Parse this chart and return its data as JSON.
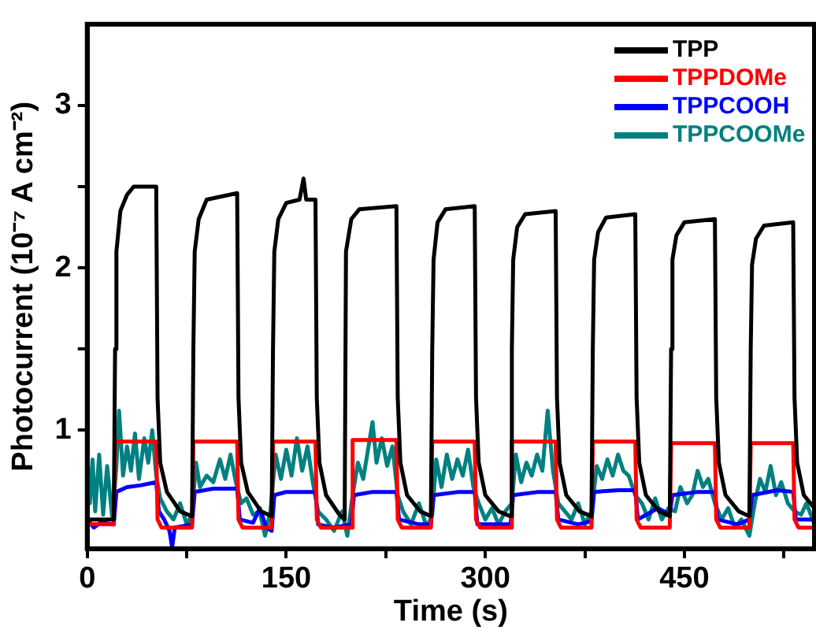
{
  "chart_data": {
    "type": "line",
    "xlabel": "Time (s)",
    "ylabel": "Photocurrent (10⁻⁷ A cm⁻²)",
    "xlim": [
      0,
      548
    ],
    "xticks": [
      0,
      {
        "value": 75,
        "label": null
      },
      150,
      {
        "value": 225,
        "label": null
      },
      300,
      {
        "value": 375,
        "label": null
      },
      450,
      {
        "value": 525,
        "label": null
      }
    ],
    "ylim": [
      0.27,
      3.5
    ],
    "yticks": [
      1,
      {
        "value": 1.5,
        "label": null
      },
      2,
      {
        "value": 2.5,
        "label": null
      },
      3
    ],
    "grid": false,
    "legend": "top right",
    "marker": "none",
    "line_style": "solid",
    "series": [
      {
        "name": "TPP",
        "color": "#000000",
        "x": [
          0,
          20,
          21,
          22,
          25,
          30,
          35,
          52,
          53,
          55,
          60,
          70,
          79,
          80,
          81,
          84,
          90,
          113,
          114,
          116,
          121,
          131,
          139,
          140,
          141,
          144,
          150,
          160,
          163,
          165,
          172,
          173,
          175,
          180,
          190,
          194,
          195,
          197,
          199,
          205,
          233,
          234,
          236,
          241,
          251,
          259,
          260,
          261,
          264,
          270,
          292,
          293,
          295,
          300,
          310,
          319,
          320,
          321,
          324,
          330,
          353,
          354,
          356,
          361,
          371,
          380,
          381,
          382,
          385,
          391,
          413,
          414,
          416,
          421,
          431,
          439,
          440,
          441,
          444,
          450,
          473,
          474,
          476,
          481,
          491,
          499,
          500,
          501,
          504,
          510,
          532,
          533,
          535,
          540,
          548
        ],
        "values": [
          0.45,
          0.45,
          1.5,
          2.1,
          2.35,
          2.45,
          2.5,
          2.5,
          1.2,
          0.8,
          0.62,
          0.5,
          0.47,
          1.5,
          2.1,
          2.3,
          2.42,
          2.46,
          1.2,
          0.8,
          0.62,
          0.5,
          0.47,
          1.5,
          2.1,
          2.3,
          2.4,
          2.42,
          2.55,
          2.42,
          2.42,
          1.2,
          0.8,
          0.6,
          0.48,
          0.45,
          2.1,
          2.2,
          2.3,
          2.36,
          2.38,
          1.2,
          0.8,
          0.6,
          0.5,
          0.47,
          1.5,
          2.05,
          2.28,
          2.36,
          2.38,
          1.2,
          0.8,
          0.6,
          0.5,
          0.47,
          1.5,
          2.05,
          2.25,
          2.33,
          2.35,
          1.2,
          0.8,
          0.6,
          0.5,
          0.47,
          1.5,
          2.05,
          2.22,
          2.31,
          2.33,
          1.2,
          0.8,
          0.6,
          0.5,
          0.47,
          1.5,
          2.05,
          2.2,
          2.28,
          2.3,
          1.2,
          0.8,
          0.6,
          0.5,
          0.47,
          1.5,
          2.02,
          2.18,
          2.26,
          2.28,
          1.2,
          0.8,
          0.6,
          0.52
        ]
      },
      {
        "name": "TPPDOMe",
        "color": "#ff0000",
        "x": [
          0,
          20,
          21,
          52,
          53,
          56,
          79,
          80,
          113,
          114,
          117,
          139,
          140,
          172,
          173,
          176,
          199,
          200,
          233,
          234,
          237,
          259,
          260,
          292,
          293,
          296,
          319,
          320,
          353,
          354,
          357,
          380,
          381,
          413,
          414,
          417,
          439,
          440,
          473,
          474,
          477,
          499,
          500,
          532,
          533,
          536,
          548
        ],
        "values": [
          0.42,
          0.42,
          0.93,
          0.93,
          0.45,
          0.4,
          0.4,
          0.93,
          0.93,
          0.45,
          0.4,
          0.4,
          0.93,
          0.93,
          0.45,
          0.4,
          0.4,
          0.94,
          0.94,
          0.45,
          0.4,
          0.4,
          0.93,
          0.93,
          0.45,
          0.4,
          0.4,
          0.93,
          0.93,
          0.45,
          0.4,
          0.4,
          0.93,
          0.93,
          0.45,
          0.4,
          0.4,
          0.92,
          0.92,
          0.45,
          0.4,
          0.4,
          0.92,
          0.92,
          0.45,
          0.4,
          0.4
        ]
      },
      {
        "name": "TPPCOOH",
        "color": "#0000ff",
        "x": [
          0,
          5,
          10,
          20,
          22,
          30,
          40,
          52,
          54,
          58,
          62,
          64,
          66,
          79,
          81,
          95,
          113,
          115,
          125,
          130,
          135,
          139,
          141,
          150,
          172,
          174,
          185,
          199,
          201,
          215,
          233,
          235,
          250,
          259,
          261,
          280,
          292,
          294,
          319,
          321,
          340,
          353,
          355,
          370,
          380,
          382,
          400,
          413,
          415,
          430,
          439,
          441,
          460,
          473,
          475,
          490,
          499,
          501,
          520,
          532,
          534,
          548
        ],
        "values": [
          0.45,
          0.4,
          0.43,
          0.42,
          0.62,
          0.65,
          0.66,
          0.68,
          0.5,
          0.45,
          0.38,
          0.28,
          0.4,
          0.42,
          0.62,
          0.64,
          0.64,
          0.45,
          0.43,
          0.52,
          0.4,
          0.38,
          0.6,
          0.62,
          0.62,
          0.42,
          0.4,
          0.42,
          0.6,
          0.62,
          0.62,
          0.45,
          0.42,
          0.42,
          0.6,
          0.62,
          0.62,
          0.42,
          0.42,
          0.6,
          0.62,
          0.62,
          0.45,
          0.42,
          0.44,
          0.62,
          0.63,
          0.63,
          0.45,
          0.52,
          0.48,
          0.6,
          0.62,
          0.62,
          0.45,
          0.42,
          0.45,
          0.6,
          0.63,
          0.62,
          0.45,
          0.45
        ]
      },
      {
        "name": "TPPCOOMe",
        "color": "#008080",
        "x": [
          0,
          2,
          4,
          6,
          9,
          12,
          15,
          19,
          22,
          24,
          27,
          30,
          33,
          36,
          39,
          43,
          46,
          49,
          52,
          55,
          60,
          65,
          70,
          75,
          79,
          82,
          85,
          90,
          95,
          100,
          104,
          108,
          112,
          116,
          120,
          125,
          130,
          134,
          138,
          142,
          146,
          150,
          154,
          158,
          162,
          166,
          170,
          174,
          180,
          186,
          192,
          196,
          200,
          204,
          208,
          212,
          215,
          218,
          222,
          226,
          230,
          234,
          238,
          244,
          250,
          256,
          260,
          263,
          267,
          271,
          275,
          279,
          283,
          287,
          291,
          295,
          300,
          305,
          310,
          315,
          320,
          323,
          327,
          331,
          335,
          339,
          343,
          347,
          351,
          355,
          360,
          365,
          370,
          375,
          380,
          384,
          388,
          392,
          396,
          400,
          404,
          408,
          413,
          418,
          423,
          428,
          433,
          438,
          443,
          447,
          452,
          456,
          460,
          464,
          468,
          473,
          478,
          483,
          488,
          493,
          499,
          503,
          507,
          511,
          515,
          519,
          523,
          528,
          533,
          538,
          542,
          548
        ],
        "values": [
          0.85,
          0.55,
          0.82,
          0.5,
          0.85,
          0.48,
          0.78,
          0.45,
          0.78,
          1.12,
          0.72,
          0.9,
          0.75,
          0.98,
          0.7,
          0.95,
          0.8,
          1.0,
          0.72,
          0.58,
          0.5,
          0.45,
          0.55,
          0.42,
          0.48,
          0.8,
          0.65,
          0.72,
          0.68,
          0.82,
          0.7,
          0.85,
          0.68,
          0.55,
          0.58,
          0.48,
          0.5,
          0.35,
          0.5,
          0.85,
          0.7,
          0.88,
          0.72,
          0.95,
          0.75,
          0.9,
          0.68,
          0.5,
          0.45,
          0.38,
          0.5,
          0.35,
          0.6,
          0.8,
          0.7,
          0.9,
          1.05,
          0.8,
          0.95,
          0.78,
          0.9,
          0.6,
          0.5,
          0.42,
          0.55,
          0.4,
          0.48,
          0.82,
          0.65,
          0.85,
          0.7,
          0.82,
          0.72,
          0.88,
          0.65,
          0.55,
          0.45,
          0.52,
          0.42,
          0.5,
          0.55,
          0.85,
          0.68,
          0.8,
          0.72,
          0.85,
          0.75,
          1.12,
          0.75,
          0.55,
          0.5,
          0.45,
          0.55,
          0.42,
          0.5,
          0.78,
          0.7,
          0.82,
          0.72,
          0.85,
          0.75,
          0.72,
          0.6,
          0.55,
          0.45,
          0.58,
          0.45,
          0.52,
          0.5,
          0.65,
          0.55,
          0.6,
          0.75,
          0.65,
          0.7,
          0.55,
          0.45,
          0.52,
          0.4,
          0.45,
          0.35,
          0.55,
          0.7,
          0.62,
          0.78,
          0.6,
          0.68,
          0.55,
          0.5,
          0.48,
          0.55,
          0.42
        ]
      }
    ]
  }
}
